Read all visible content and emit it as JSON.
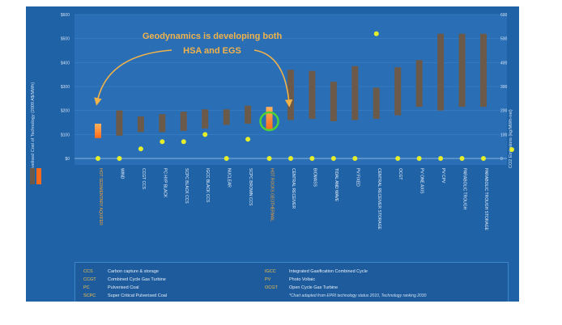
{
  "chart_data": {
    "type": "bar",
    "title": "",
    "annotation": [
      "Geodynamics is developing both",
      "HSA and EGS"
    ],
    "ylabel_left": "Levelised Cost of Technology (2009 A$/MWh)",
    "ylabel_right": "CO2 Emissions (kg/MWh-net)",
    "y_left_ticks": [
      "$0",
      "$100",
      "$200",
      "$300",
      "$400",
      "$500",
      "$600"
    ],
    "y_right_ticks": [
      "0",
      "100",
      "200",
      "300",
      "400",
      "500",
      "600"
    ],
    "ylim": [
      0,
      600
    ],
    "categories": [
      "HOT SEDIMENTARY AQUIFER",
      "WIND",
      "CCGT CCS",
      "PC HYP BLACK",
      "SCPC BLACK CCS",
      "IGCC BLACK CCS",
      "NUCLEAR",
      "SCPC BROWN CCS",
      "HOT ROCKS GEOTHERMAL",
      "CENTRAL RECEIVER",
      "BIOMASS",
      "TIDAL AND WAVE",
      "PV FIXED",
      "CENTRAL RECEIVER STORAGE",
      "OCGT",
      "PV ONE AXIS",
      "PV CPV",
      "PARABOLIC TROUGH",
      "PARABOLIC TROUGH STORAGE"
    ],
    "series": [
      {
        "name": "",
        "type": "range",
        "low": [
          85,
          95,
          110,
          110,
          115,
          125,
          140,
          145,
          120,
          160,
          165,
          155,
          160,
          165,
          180,
          215,
          200,
          215,
          215
        ],
        "high": [
          145,
          200,
          175,
          185,
          195,
          205,
          205,
          220,
          215,
          370,
          365,
          320,
          385,
          295,
          380,
          410,
          520,
          520,
          520
        ]
      },
      {
        "name": "",
        "type": "points",
        "values": [
          0,
          0,
          40,
          70,
          70,
          100,
          0,
          80,
          0,
          0,
          0,
          0,
          0,
          520,
          0,
          0,
          0,
          0,
          0
        ]
      }
    ],
    "highlight": [
      0,
      8
    ],
    "colors": {
      "bar": "#6b5a4a",
      "bar_highlight": "#ff6a1a",
      "bar_highlight_fade": "#ffb25c",
      "point": "#e4ee2a",
      "circle": "#4cd137",
      "arrow": "#f2b24a"
    }
  },
  "legend": {
    "swatch_colors": [
      "#6b5a4a",
      "#ff6a1a"
    ],
    "point_color": "#e4ee2a",
    "items_left": [
      {
        "abbr": "CCS",
        "text": "Carbon capture & storage"
      },
      {
        "abbr": "CCGT",
        "text": "Combined Cycle Gas Turbine"
      },
      {
        "abbr": "PC",
        "text": "Pulverised Coal"
      },
      {
        "abbr": "SCPC",
        "text": "Super Critical Pulverised Coal"
      }
    ],
    "items_right": [
      {
        "abbr": "IGCC",
        "text": "Integrated Gasification Combined Cycle"
      },
      {
        "abbr": "PV",
        "text": "Photo Voltaic"
      },
      {
        "abbr": "OCGT",
        "text": "Open Cycle Gas Turbine"
      }
    ],
    "note": "*Chart adapted from EPRI technology status 2010, Technology ranking 2030"
  }
}
